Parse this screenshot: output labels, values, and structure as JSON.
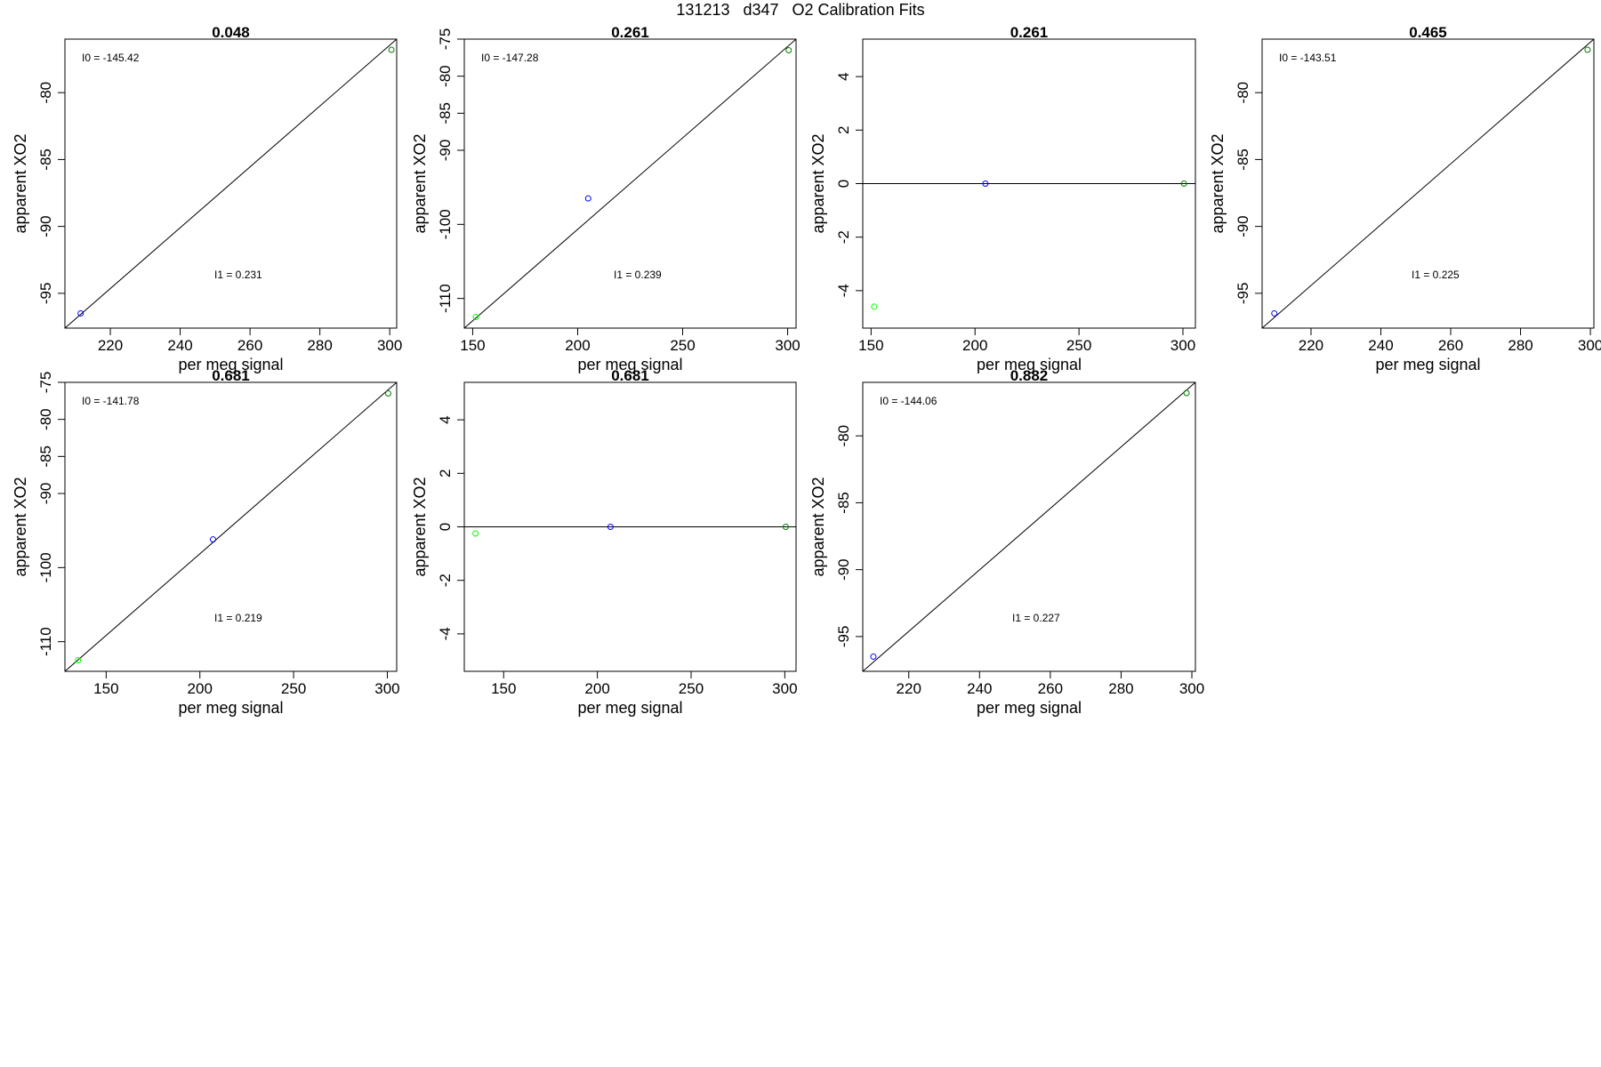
{
  "page": {
    "title": "131213   d347   O2 Calibration Fits"
  },
  "chart_data": [
    {
      "type": "scatter",
      "title": "0.048",
      "xlabel": "per meg signal",
      "ylabel": "apparent XO2",
      "xlim": [
        207,
        302
      ],
      "ylim": [
        -97.6,
        -76
      ],
      "xticks": [
        220,
        240,
        260,
        280,
        300
      ],
      "yticks": [
        -95,
        -90,
        -85,
        -80
      ],
      "points": [
        {
          "x": 211.5,
          "y": -96.5,
          "color": "#0000ff"
        },
        {
          "x": 300.5,
          "y": -76.8,
          "color": "#008000"
        }
      ],
      "fit_line": [
        [
          207,
          -97.6
        ],
        [
          302,
          -76
        ]
      ],
      "annotations": [
        {
          "label": "I0 =",
          "value": "-145.42"
        },
        {
          "label": "I1 =",
          "value": "0.231"
        }
      ]
    },
    {
      "type": "scatter",
      "title": "0.261",
      "xlabel": "per meg signal",
      "ylabel": "apparent XO2",
      "xlim": [
        146,
        304
      ],
      "ylim": [
        -114,
        -75
      ],
      "xticks": [
        150,
        200,
        250,
        300
      ],
      "yticks": [
        -110,
        -100,
        -90,
        -85,
        -80,
        -75
      ],
      "points": [
        {
          "x": 151.5,
          "y": -112.5,
          "color": "#00ff00"
        },
        {
          "x": 205.0,
          "y": -96.5,
          "color": "#0000ff"
        },
        {
          "x": 300.5,
          "y": -76.5,
          "color": "#008000"
        }
      ],
      "fit_line": [
        [
          146,
          -114
        ],
        [
          304,
          -75
        ]
      ],
      "annotations": [
        {
          "label": "I0 =",
          "value": "-147.28"
        },
        {
          "label": "I1 =",
          "value": "0.239"
        }
      ]
    },
    {
      "type": "scatter",
      "title": "0.261",
      "xlabel": "per meg signal",
      "ylabel": "apparent XO2",
      "xlim": [
        146,
        306
      ],
      "ylim": [
        -5.4,
        5.4
      ],
      "xticks": [
        150,
        200,
        250,
        300
      ],
      "yticks": [
        -4,
        -2,
        0,
        2,
        4
      ],
      "points": [
        {
          "x": 151.5,
          "y": -4.6,
          "color": "#00ff00"
        },
        {
          "x": 205.0,
          "y": 0,
          "color": "#0000ff"
        },
        {
          "x": 300.5,
          "y": 0,
          "color": "#008000"
        }
      ],
      "fit_line": [
        [
          146,
          0
        ],
        [
          306,
          0
        ]
      ],
      "annotations": []
    },
    {
      "type": "scatter",
      "title": "0.465",
      "xlabel": "per meg signal",
      "ylabel": "apparent XO2",
      "xlim": [
        206,
        301
      ],
      "ylim": [
        -97.6,
        -76
      ],
      "xticks": [
        220,
        240,
        260,
        280,
        300
      ],
      "yticks": [
        -95,
        -90,
        -85,
        -80
      ],
      "points": [
        {
          "x": 209.5,
          "y": -96.5,
          "color": "#0000ff"
        },
        {
          "x": 299.2,
          "y": -76.8,
          "color": "#008000"
        }
      ],
      "fit_line": [
        [
          206,
          -97.6
        ],
        [
          301,
          -76
        ]
      ],
      "annotations": [
        {
          "label": "I0 =",
          "value": "-143.51"
        },
        {
          "label": "I1 =",
          "value": "0.225"
        }
      ]
    },
    {
      "type": "scatter",
      "title": "0.681",
      "xlabel": "per meg signal",
      "ylabel": "apparent XO2",
      "xlim": [
        128,
        305
      ],
      "ylim": [
        -114,
        -75
      ],
      "xticks": [
        150,
        200,
        250,
        300
      ],
      "yticks": [
        -110,
        -100,
        -90,
        -85,
        -80,
        -75
      ],
      "points": [
        {
          "x": 135.0,
          "y": -112.5,
          "color": "#00ff00"
        },
        {
          "x": 207.0,
          "y": -96.2,
          "color": "#0000ff"
        },
        {
          "x": 300.5,
          "y": -76.5,
          "color": "#008000"
        }
      ],
      "fit_line": [
        [
          128,
          -114
        ],
        [
          305,
          -75
        ]
      ],
      "annotations": [
        {
          "label": "I0 =",
          "value": "-141.78"
        },
        {
          "label": "I1 =",
          "value": "0.219"
        }
      ]
    },
    {
      "type": "scatter",
      "title": "0.681",
      "xlabel": "per meg signal",
      "ylabel": "apparent XO2",
      "xlim": [
        129,
        306
      ],
      "ylim": [
        -5.4,
        5.4
      ],
      "xticks": [
        150,
        200,
        250,
        300
      ],
      "yticks": [
        -4,
        -2,
        0,
        2,
        4
      ],
      "points": [
        {
          "x": 135.0,
          "y": -0.25,
          "color": "#00ff00"
        },
        {
          "x": 207.0,
          "y": 0,
          "color": "#0000ff"
        },
        {
          "x": 300.5,
          "y": 0,
          "color": "#008000"
        }
      ],
      "fit_line": [
        [
          129,
          0
        ],
        [
          306,
          0
        ]
      ],
      "annotations": []
    },
    {
      "type": "scatter",
      "title": "0.882",
      "xlabel": "per meg signal",
      "ylabel": "apparent XO2",
      "xlim": [
        207,
        301
      ],
      "ylim": [
        -97.6,
        -76
      ],
      "xticks": [
        220,
        240,
        260,
        280,
        300
      ],
      "yticks": [
        -95,
        -90,
        -85,
        -80
      ],
      "points": [
        {
          "x": 210.0,
          "y": -96.5,
          "color": "#0000ff"
        },
        {
          "x": 298.5,
          "y": -76.8,
          "color": "#008000"
        }
      ],
      "fit_line": [
        [
          207,
          -97.6
        ],
        [
          301,
          -76
        ]
      ],
      "annotations": [
        {
          "label": "I0 =",
          "value": "-144.06"
        },
        {
          "label": "I1 =",
          "value": "0.227"
        }
      ]
    }
  ]
}
